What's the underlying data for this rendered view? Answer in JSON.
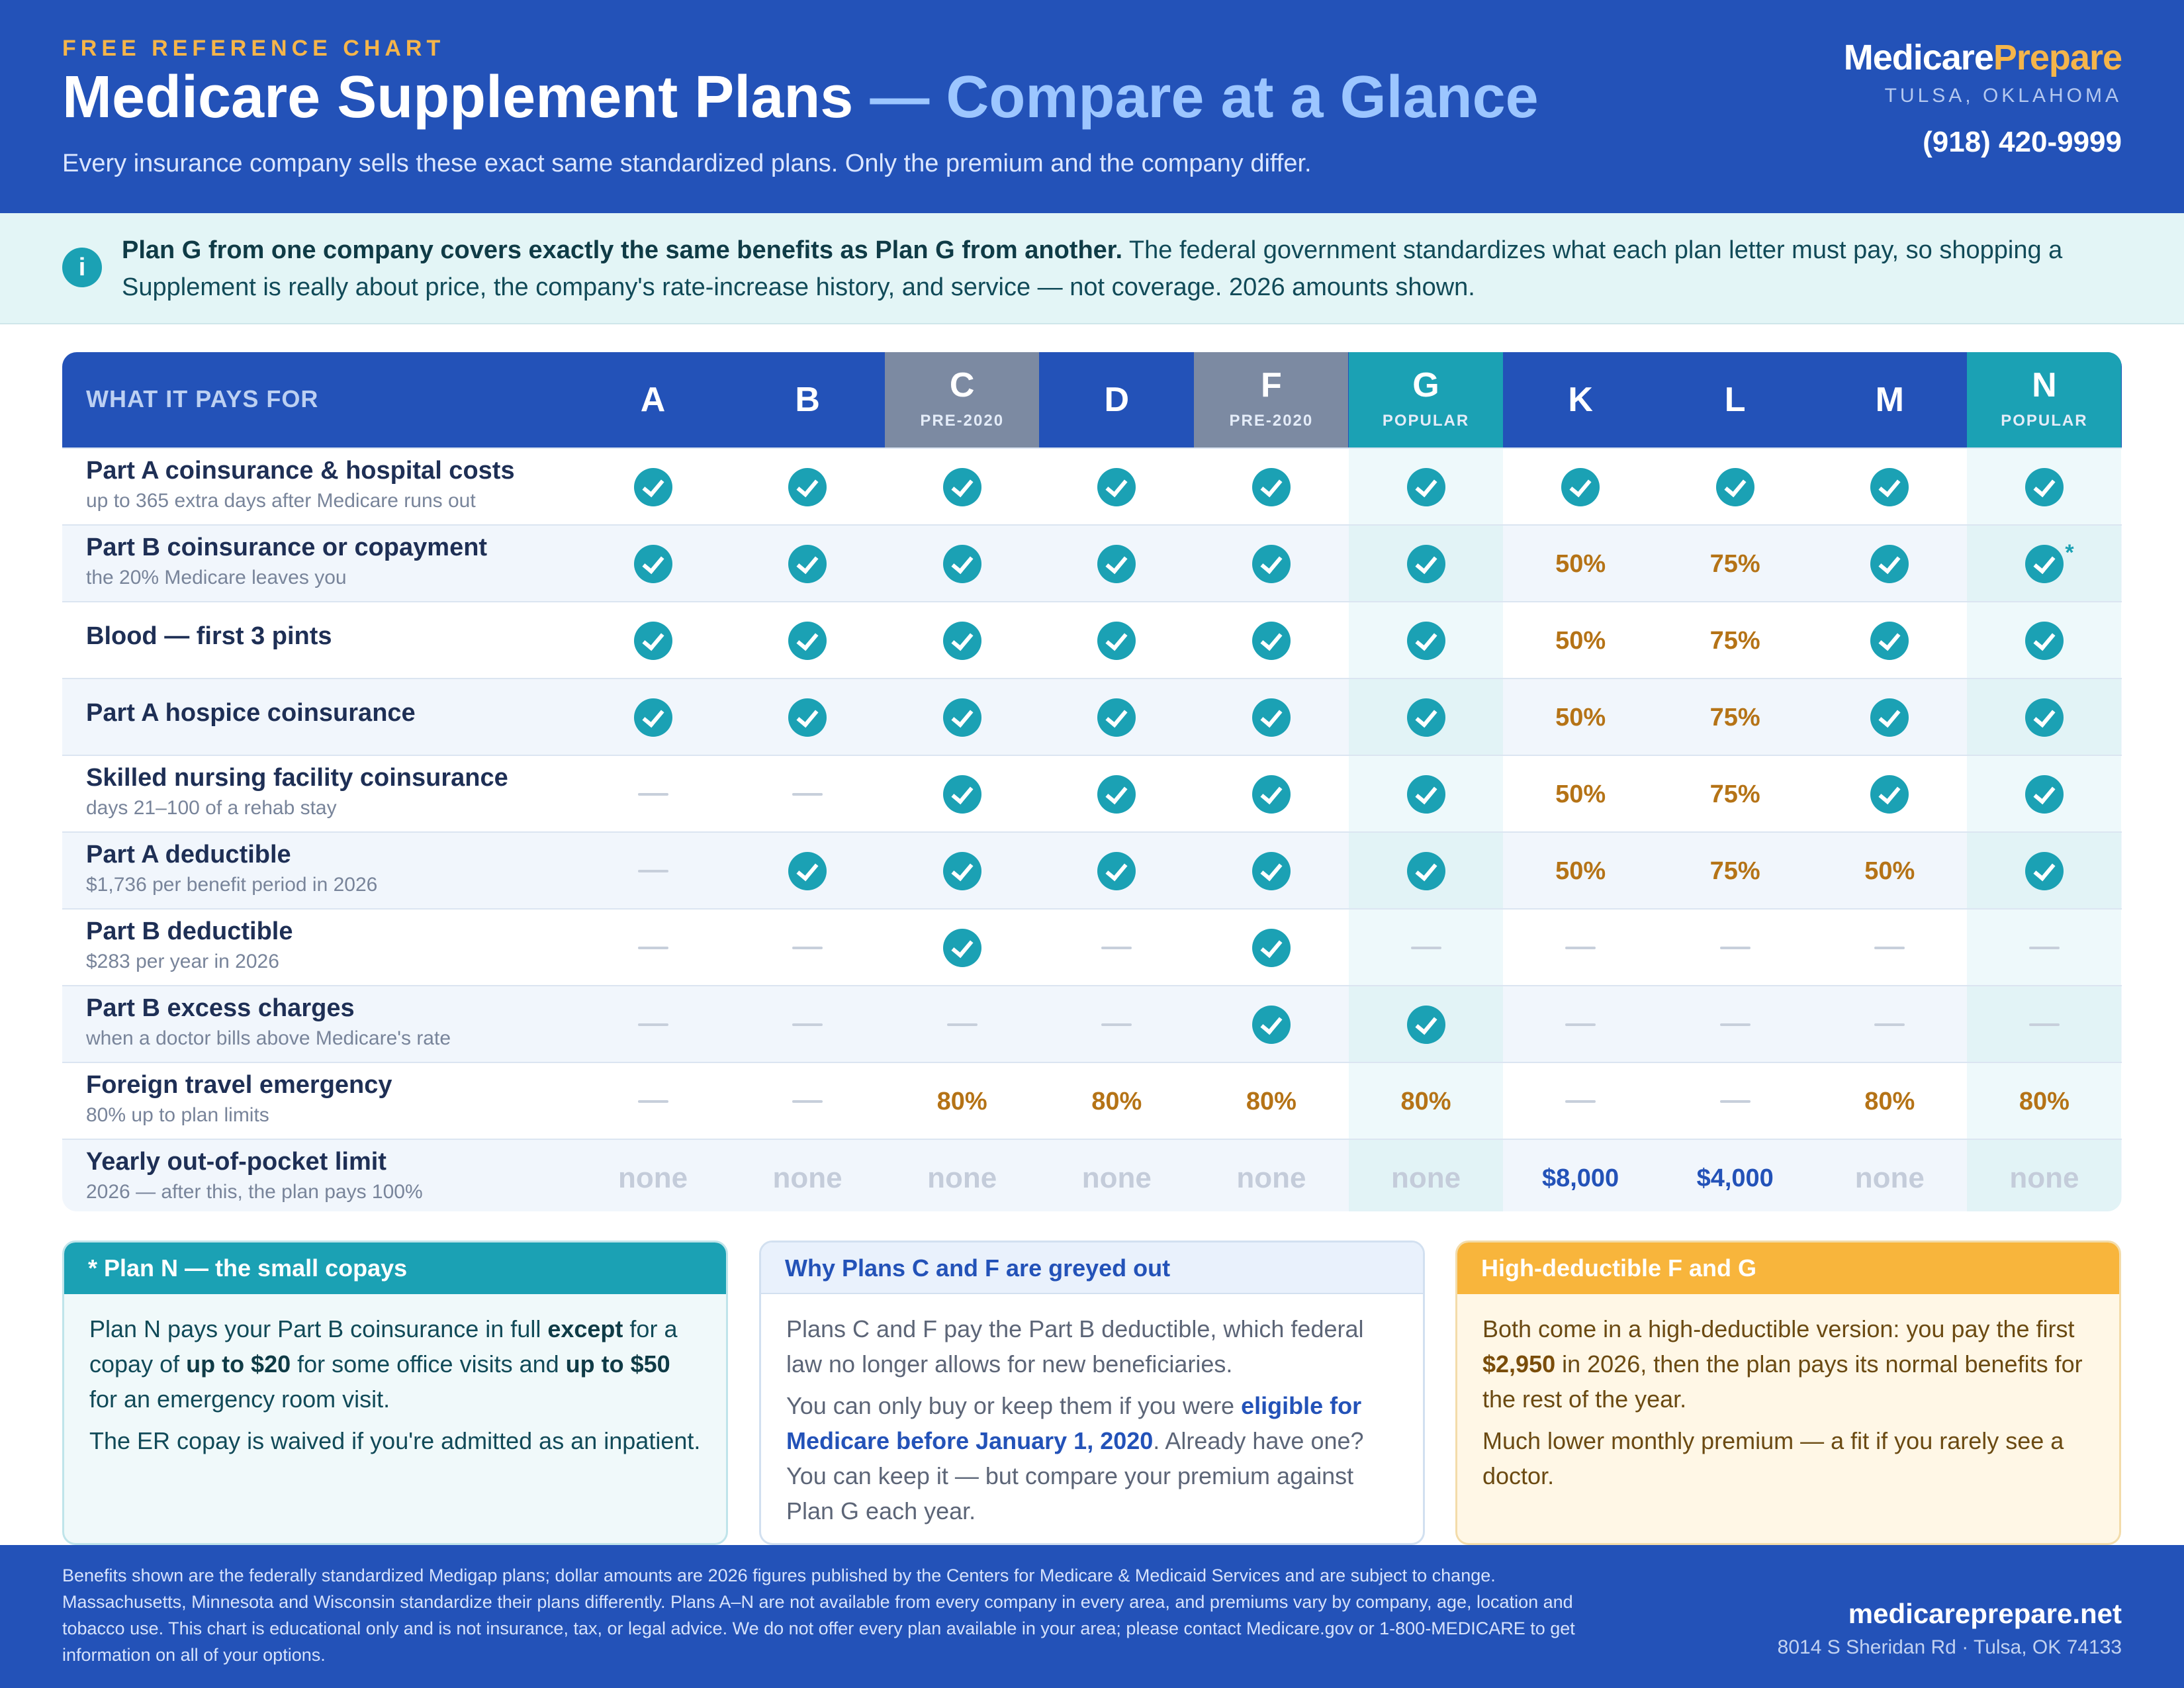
{
  "header": {
    "eyebrow": "FREE REFERENCE CHART",
    "title_main": "Medicare Supplement Plans",
    "title_accent": " — Compare at a Glance",
    "subtitle": "Every insurance company sells these exact same standardized plans. Only the premium and the company differ.",
    "brand_a": "Medicare",
    "brand_b": "Prepare",
    "location": "TULSA, OKLAHOMA",
    "phone": "(918) 420-9999"
  },
  "banner": {
    "icon": "info-icon",
    "lead": "Plan G from one company covers exactly the same benefits as Plan G from another.",
    "text": " The federal government standardizes what each plan letter must pay, so shopping a Supplement is really about price, the company's rate-increase history, and service — not coverage. 2026 amounts shown."
  },
  "table": {
    "label_header": "WHAT IT PAYS FOR",
    "plans": [
      {
        "letter": "A",
        "tag": "",
        "style": "normal"
      },
      {
        "letter": "B",
        "tag": "",
        "style": "normal"
      },
      {
        "letter": "C",
        "tag": "PRE-2020",
        "style": "grey"
      },
      {
        "letter": "D",
        "tag": "",
        "style": "normal"
      },
      {
        "letter": "F",
        "tag": "PRE-2020",
        "style": "grey"
      },
      {
        "letter": "G",
        "tag": "POPULAR",
        "style": "teal"
      },
      {
        "letter": "K",
        "tag": "",
        "style": "normal"
      },
      {
        "letter": "L",
        "tag": "",
        "style": "normal"
      },
      {
        "letter": "M",
        "tag": "",
        "style": "normal"
      },
      {
        "letter": "N",
        "tag": "POPULAR",
        "style": "teal"
      }
    ],
    "rows": [
      {
        "title": "Part A coinsurance & hospital costs",
        "sub": "up to 365 extra days after Medicare runs out",
        "cells": [
          "check",
          "check",
          "check",
          "check",
          "check",
          "check",
          "check",
          "check",
          "check",
          "check"
        ]
      },
      {
        "title": "Part B coinsurance or copayment",
        "sub": "the 20% Medicare leaves you",
        "cells": [
          "check",
          "check",
          "check",
          "check",
          "check",
          "check",
          "50%",
          "75%",
          "check",
          "check*"
        ]
      },
      {
        "title": "Blood — first 3 pints",
        "sub": "",
        "cells": [
          "check",
          "check",
          "check",
          "check",
          "check",
          "check",
          "50%",
          "75%",
          "check",
          "check"
        ]
      },
      {
        "title": "Part A hospice coinsurance",
        "sub": "",
        "cells": [
          "check",
          "check",
          "check",
          "check",
          "check",
          "check",
          "50%",
          "75%",
          "check",
          "check"
        ]
      },
      {
        "title": "Skilled nursing facility coinsurance",
        "sub": "days 21–100 of a rehab stay",
        "cells": [
          "dash",
          "dash",
          "check",
          "check",
          "check",
          "check",
          "50%",
          "75%",
          "check",
          "check"
        ]
      },
      {
        "title": "Part A deductible",
        "sub": "$1,736 per benefit period in 2026",
        "cells": [
          "dash",
          "check",
          "check",
          "check",
          "check",
          "check",
          "50%",
          "75%",
          "50%",
          "check"
        ]
      },
      {
        "title": "Part B deductible",
        "sub": "$283 per year in 2026",
        "cells": [
          "dash",
          "dash",
          "check",
          "dash",
          "check",
          "dash",
          "dash",
          "dash",
          "dash",
          "dash"
        ]
      },
      {
        "title": "Part B excess charges",
        "sub": "when a doctor bills above Medicare's rate",
        "cells": [
          "dash",
          "dash",
          "dash",
          "dash",
          "check",
          "check",
          "dash",
          "dash",
          "dash",
          "dash"
        ]
      },
      {
        "title": "Foreign travel emergency",
        "sub": "80% up to plan limits",
        "cells": [
          "dash",
          "dash",
          "80%",
          "80%",
          "80%",
          "80%",
          "dash",
          "dash",
          "80%",
          "80%"
        ]
      },
      {
        "title": "Yearly out-of-pocket limit",
        "sub": "2026 — after this, the plan pays 100%",
        "cells": [
          "none",
          "none",
          "none",
          "none",
          "none",
          "none",
          "$8,000",
          "$4,000",
          "none",
          "none"
        ]
      }
    ]
  },
  "boxes": {
    "plan_n": {
      "title": "* Plan N — the small copays",
      "p1_a": "Plan N pays your Part B coinsurance in full ",
      "p1_b": "except",
      "p1_c": " for a copay of ",
      "p1_d": "up to $20",
      "p1_e": " for some office visits and ",
      "p1_f": "up to $50",
      "p1_g": " for an emergency room visit.",
      "p2": "The ER copay is waived if you're admitted as an inpatient."
    },
    "c_and_f": {
      "title": "Why Plans C and F are greyed out",
      "p1": "Plans C and F pay the Part B deductible, which federal law no longer allows for new beneficiaries.",
      "p2_a": "You can only buy or keep them if you were ",
      "p2_b": "eligible for Medicare before January 1, 2020",
      "p2_c": ". Already have one? You can keep it — but compare your premium against Plan G each year."
    },
    "high_deductible": {
      "title": "High-deductible F and G",
      "p1_a": "Both come in a high-deductible version: you pay the first ",
      "p1_b": "$2,950",
      "p1_c": " in 2026, then the plan pays its normal benefits for the rest of the year.",
      "p2": "Much lower monthly premium — a fit if you rarely see a doctor."
    }
  },
  "footer": {
    "disclaimer": "Benefits shown are the federally standardized Medigap plans; dollar amounts are 2026 figures published by the Centers for Medicare & Medicaid Services and are subject to change. Massachusetts, Minnesota and Wisconsin standardize their plans differently. Plans A–N are not available from every company in every area, and premiums vary by company, age, location and tobacco use. This chart is educational only and is not insurance, tax, or legal advice. We do not offer every plan available in your area; please contact Medicare.gov or 1-800-MEDICARE to get information on all of your options.",
    "site": "medicareprepare.net",
    "address": "8014 S Sheridan Rd · Tulsa, OK 74133"
  },
  "colors": {
    "primary": "#2352b8",
    "teal": "#1ba1b4",
    "grey_plan": "#7c8aa2",
    "gold": "#f5b54a",
    "percent": "#b57316"
  }
}
